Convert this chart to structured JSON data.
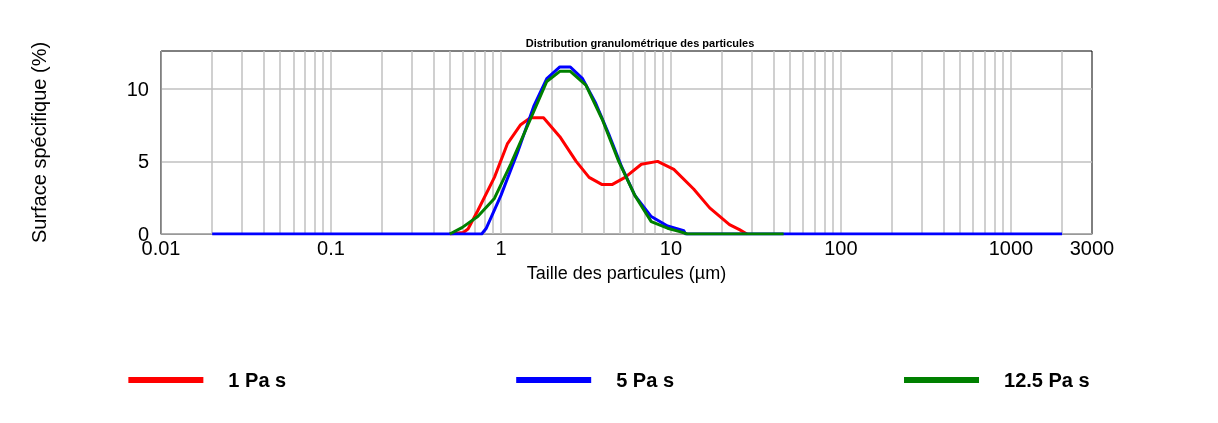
{
  "chart_data": {
    "type": "line",
    "title": "Distribution granulométrique des particules",
    "xlabel": "Taille des particules (µm)",
    "ylabel": "Surface spécifique (%)",
    "log": "x",
    "xlim": [
      0.01,
      3000
    ],
    "xticks": [
      0.01,
      0.1,
      1,
      10,
      100,
      1000,
      3000
    ],
    "ylim": [
      0,
      12.6
    ],
    "yticks": [
      0,
      5,
      10
    ],
    "grid": true,
    "legend": "bottom",
    "marker": "none",
    "line_style": "solid",
    "series": [
      {
        "name": "1 Pa s",
        "color": "#ff0000",
        "x": [
          0.5,
          0.6,
          0.64,
          0.73,
          0.915,
          1.09,
          1.3,
          1.49,
          1.78,
          2.22,
          2.77,
          3.3,
          3.94,
          4.5,
          5.37,
          6.7,
          8.35,
          10.4,
          13.6,
          16.9,
          22.1,
          25.3,
          28
        ],
        "values": [
          0,
          0.1,
          0.34,
          1.6,
          3.9,
          6.2,
          7.5,
          8,
          8,
          6.7,
          5,
          3.9,
          3.4,
          3.4,
          3.9,
          4.8,
          5,
          4.45,
          3.1,
          1.8,
          0.65,
          0.3,
          0
        ]
      },
      {
        "name": "5 Pa s",
        "color": "#0000ff",
        "x": [
          0.02,
          0.77,
          0.82,
          1,
          1.25,
          1.56,
          1.86,
          2.22,
          2.56,
          3.02,
          3.61,
          4.3,
          5.14,
          6.13,
          7.66,
          9.55,
          11.9,
          12.2,
          2000
        ],
        "values": [
          0,
          0,
          0.4,
          2.66,
          5.6,
          8.8,
          10.7,
          11.5,
          11.5,
          10.7,
          9,
          6.9,
          4.6,
          2.66,
          1.2,
          0.55,
          0.23,
          0,
          0
        ]
      },
      {
        "name": "12.5 Pa s",
        "color": "#008000",
        "x": [
          0.5,
          0.59,
          0.73,
          0.915,
          1.14,
          1.49,
          1.86,
          2.22,
          2.56,
          3.16,
          3.94,
          4.93,
          6.13,
          7.66,
          9.55,
          11.4,
          12.5,
          46
        ],
        "values": [
          0,
          0.44,
          1.2,
          2.45,
          4.8,
          7.9,
          10.5,
          11.2,
          11.2,
          10.25,
          7.9,
          5,
          2.66,
          0.85,
          0.4,
          0.15,
          0,
          0
        ]
      }
    ]
  }
}
